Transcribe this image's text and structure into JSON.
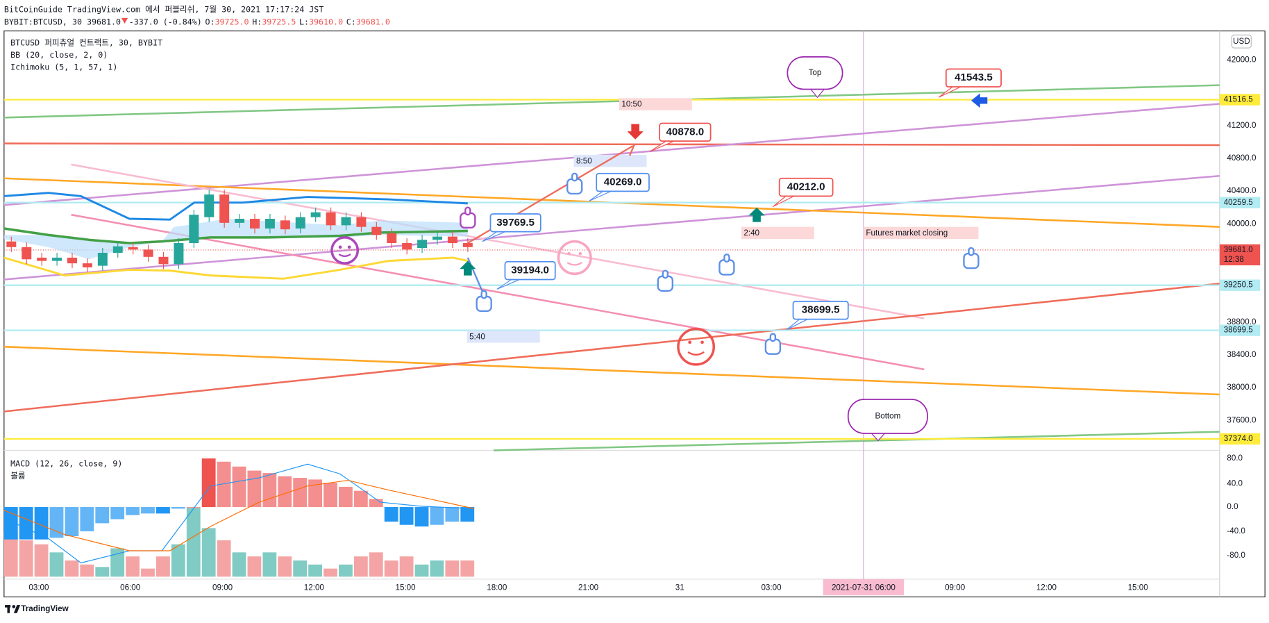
{
  "header": {
    "line1": "BitCoinGuide TradingView.com 에서 퍼블리쉬, 7월 30, 2021 17:17:24 JST",
    "symbol": "BYBIT:BTCUSD, 30 39681.0",
    "change": "-337.0 (-0.84%)",
    "ohlc": [
      {
        "label": "O:",
        "value": "39725.0"
      },
      {
        "label": "H:",
        "value": "39725.5"
      },
      {
        "label": "L:",
        "value": "39610.0"
      },
      {
        "label": "C:",
        "value": "39681.0"
      }
    ]
  },
  "legend": [
    "BTCUSD 퍼피츄얼 컨트랙트, 30, BYBIT",
    "BB (20, close, 2, 0)",
    "Ichimoku (5, 1, 57, 1)"
  ],
  "macd_legend": [
    "MACD (12, 26, close, 9)",
    "볼륨"
  ],
  "currency": "USD",
  "price_axis": [
    {
      "value": 42000,
      "label": "42000.0"
    },
    {
      "value": 41200,
      "label": "41200.0"
    },
    {
      "value": 40800,
      "label": "40800.0"
    },
    {
      "value": 40400,
      "label": "40400.0"
    },
    {
      "value": 40000,
      "label": "40000.0"
    },
    {
      "value": 38800,
      "label": "38800.0"
    },
    {
      "value": 38400,
      "label": "38400.0"
    },
    {
      "value": 38000,
      "label": "38000.0"
    },
    {
      "value": 37600,
      "label": "37600.0"
    }
  ],
  "price_labels": [
    {
      "value": 41516.5,
      "label": "41516.5"
    },
    {
      "value": 40259.5,
      "label": "40259.5"
    },
    {
      "value": 39681,
      "label": "39681.0",
      "countdown": "12:38"
    },
    {
      "value": 39250.5,
      "label": "39250.5"
    },
    {
      "value": 38699.5,
      "label": "38699.5"
    },
    {
      "value": 37374,
      "label": "37374.0"
    }
  ],
  "macd_axis": [
    "80.0",
    "40.0",
    "0.0",
    "-40.0",
    "-80.0"
  ],
  "time_axis": [
    "03:00",
    "06:00",
    "09:00",
    "12:00",
    "15:00",
    "18:00",
    "21:00",
    "31",
    "03:00",
    "09:00",
    "12:00",
    "15:00"
  ],
  "time_cursor": "2021-07-31  06:00",
  "callouts": [
    "41543.5",
    "40878.0",
    "40212.0",
    "40269.0",
    "39769.5",
    "39194.0",
    "38699.5"
  ],
  "bubbles": [
    "Top",
    "Bottom"
  ],
  "time_boxes": [
    "10:50",
    "8:50",
    "2:40",
    "5:40"
  ],
  "note": "Futures market closing",
  "footer": "TradingView"
}
